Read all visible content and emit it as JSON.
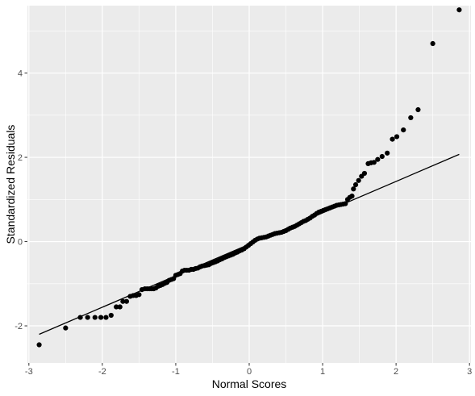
{
  "chart_data": {
    "type": "scatter",
    "xlabel": "Normal Scores",
    "ylabel": "Standardized Residuals",
    "xlim": [
      -3.02,
      3.02
    ],
    "ylim": [
      -2.88,
      5.6
    ],
    "x_ticks": [
      -3,
      -2,
      -1,
      0,
      1,
      2,
      3
    ],
    "x_tick_labels": [
      "-3",
      "-2",
      "-1",
      "0",
      "1",
      "2",
      "3"
    ],
    "y_ticks": [
      -2,
      0,
      2,
      4
    ],
    "y_tick_labels": [
      "-2",
      "0",
      "2",
      "4"
    ],
    "grid": true,
    "colors": {
      "panel": "#ebebeb",
      "grid": "#ffffff",
      "points": "#000000",
      "line": "#000000"
    },
    "reference_line": {
      "x1": -2.86,
      "y1": -2.2,
      "x2": 2.86,
      "y2": 2.07
    },
    "points": [
      [
        -2.86,
        -2.45
      ],
      [
        -2.5,
        -2.05
      ],
      [
        -2.3,
        -1.8
      ],
      [
        -2.2,
        -1.8
      ],
      [
        -2.1,
        -1.8
      ],
      [
        -2.02,
        -1.8
      ],
      [
        -1.95,
        -1.8
      ],
      [
        -1.88,
        -1.75
      ],
      [
        -1.81,
        -1.55
      ],
      [
        -1.76,
        -1.55
      ],
      [
        -1.72,
        -1.42
      ],
      [
        -1.67,
        -1.42
      ],
      [
        -1.62,
        -1.3
      ],
      [
        -1.58,
        -1.28
      ],
      [
        -1.54,
        -1.28
      ],
      [
        -1.5,
        -1.26
      ],
      [
        -1.46,
        -1.14
      ],
      [
        -1.42,
        -1.12
      ],
      [
        -1.39,
        -1.12
      ],
      [
        -1.36,
        -1.12
      ],
      [
        -1.33,
        -1.12
      ],
      [
        -1.3,
        -1.12
      ],
      [
        -1.27,
        -1.1
      ],
      [
        -1.24,
        -1.06
      ],
      [
        -1.21,
        -1.04
      ],
      [
        -1.18,
        -1.02
      ],
      [
        -1.15,
        -0.99
      ],
      [
        -1.12,
        -0.97
      ],
      [
        -1.09,
        -0.92
      ],
      [
        -1.06,
        -0.9
      ],
      [
        -1.03,
        -0.88
      ],
      [
        -1.0,
        -0.8
      ],
      [
        -0.97,
        -0.78
      ],
      [
        -0.94,
        -0.76
      ],
      [
        -0.91,
        -0.7
      ],
      [
        -0.88,
        -0.68
      ],
      [
        -0.85,
        -0.68
      ],
      [
        -0.82,
        -0.68
      ],
      [
        -0.79,
        -0.66
      ],
      [
        -0.76,
        -0.66
      ],
      [
        -0.73,
        -0.64
      ],
      [
        -0.7,
        -0.63
      ],
      [
        -0.67,
        -0.6
      ],
      [
        -0.64,
        -0.58
      ],
      [
        -0.61,
        -0.57
      ],
      [
        -0.58,
        -0.56
      ],
      [
        -0.55,
        -0.55
      ],
      [
        -0.52,
        -0.52
      ],
      [
        -0.49,
        -0.5
      ],
      [
        -0.46,
        -0.48
      ],
      [
        -0.43,
        -0.46
      ],
      [
        -0.4,
        -0.43
      ],
      [
        -0.37,
        -0.41
      ],
      [
        -0.34,
        -0.38
      ],
      [
        -0.31,
        -0.36
      ],
      [
        -0.28,
        -0.34
      ],
      [
        -0.25,
        -0.32
      ],
      [
        -0.22,
        -0.3
      ],
      [
        -0.19,
        -0.27
      ],
      [
        -0.16,
        -0.25
      ],
      [
        -0.13,
        -0.22
      ],
      [
        -0.1,
        -0.2
      ],
      [
        -0.07,
        -0.17
      ],
      [
        -0.04,
        -0.13
      ],
      [
        -0.01,
        -0.09
      ],
      [
        0.02,
        -0.05
      ],
      [
        0.05,
        -0.01
      ],
      [
        0.08,
        0.03
      ],
      [
        0.11,
        0.06
      ],
      [
        0.14,
        0.08
      ],
      [
        0.17,
        0.09
      ],
      [
        0.2,
        0.1
      ],
      [
        0.23,
        0.11
      ],
      [
        0.26,
        0.13
      ],
      [
        0.29,
        0.15
      ],
      [
        0.32,
        0.17
      ],
      [
        0.35,
        0.19
      ],
      [
        0.38,
        0.2
      ],
      [
        0.41,
        0.21
      ],
      [
        0.44,
        0.22
      ],
      [
        0.47,
        0.24
      ],
      [
        0.5,
        0.26
      ],
      [
        0.53,
        0.29
      ],
      [
        0.56,
        0.32
      ],
      [
        0.59,
        0.34
      ],
      [
        0.62,
        0.36
      ],
      [
        0.65,
        0.39
      ],
      [
        0.68,
        0.42
      ],
      [
        0.71,
        0.45
      ],
      [
        0.74,
        0.48
      ],
      [
        0.77,
        0.5
      ],
      [
        0.8,
        0.53
      ],
      [
        0.83,
        0.56
      ],
      [
        0.86,
        0.6
      ],
      [
        0.89,
        0.63
      ],
      [
        0.92,
        0.67
      ],
      [
        0.95,
        0.7
      ],
      [
        0.98,
        0.72
      ],
      [
        1.01,
        0.74
      ],
      [
        1.04,
        0.76
      ],
      [
        1.07,
        0.78
      ],
      [
        1.1,
        0.8
      ],
      [
        1.13,
        0.82
      ],
      [
        1.16,
        0.84
      ],
      [
        1.19,
        0.86
      ],
      [
        1.22,
        0.87
      ],
      [
        1.25,
        0.88
      ],
      [
        1.28,
        0.89
      ],
      [
        1.31,
        0.9
      ],
      [
        1.34,
        1.0
      ],
      [
        1.37,
        1.05
      ],
      [
        1.4,
        1.08
      ],
      [
        1.42,
        1.25
      ],
      [
        1.45,
        1.35
      ],
      [
        1.49,
        1.45
      ],
      [
        1.53,
        1.55
      ],
      [
        1.57,
        1.62
      ],
      [
        1.62,
        1.85
      ],
      [
        1.66,
        1.87
      ],
      [
        1.7,
        1.88
      ],
      [
        1.75,
        1.95
      ],
      [
        1.81,
        2.02
      ],
      [
        1.88,
        2.1
      ],
      [
        1.95,
        2.43
      ],
      [
        2.01,
        2.49
      ],
      [
        2.1,
        2.65
      ],
      [
        2.2,
        2.94
      ],
      [
        2.3,
        3.13
      ],
      [
        2.5,
        4.7
      ],
      [
        2.86,
        5.5
      ]
    ]
  }
}
